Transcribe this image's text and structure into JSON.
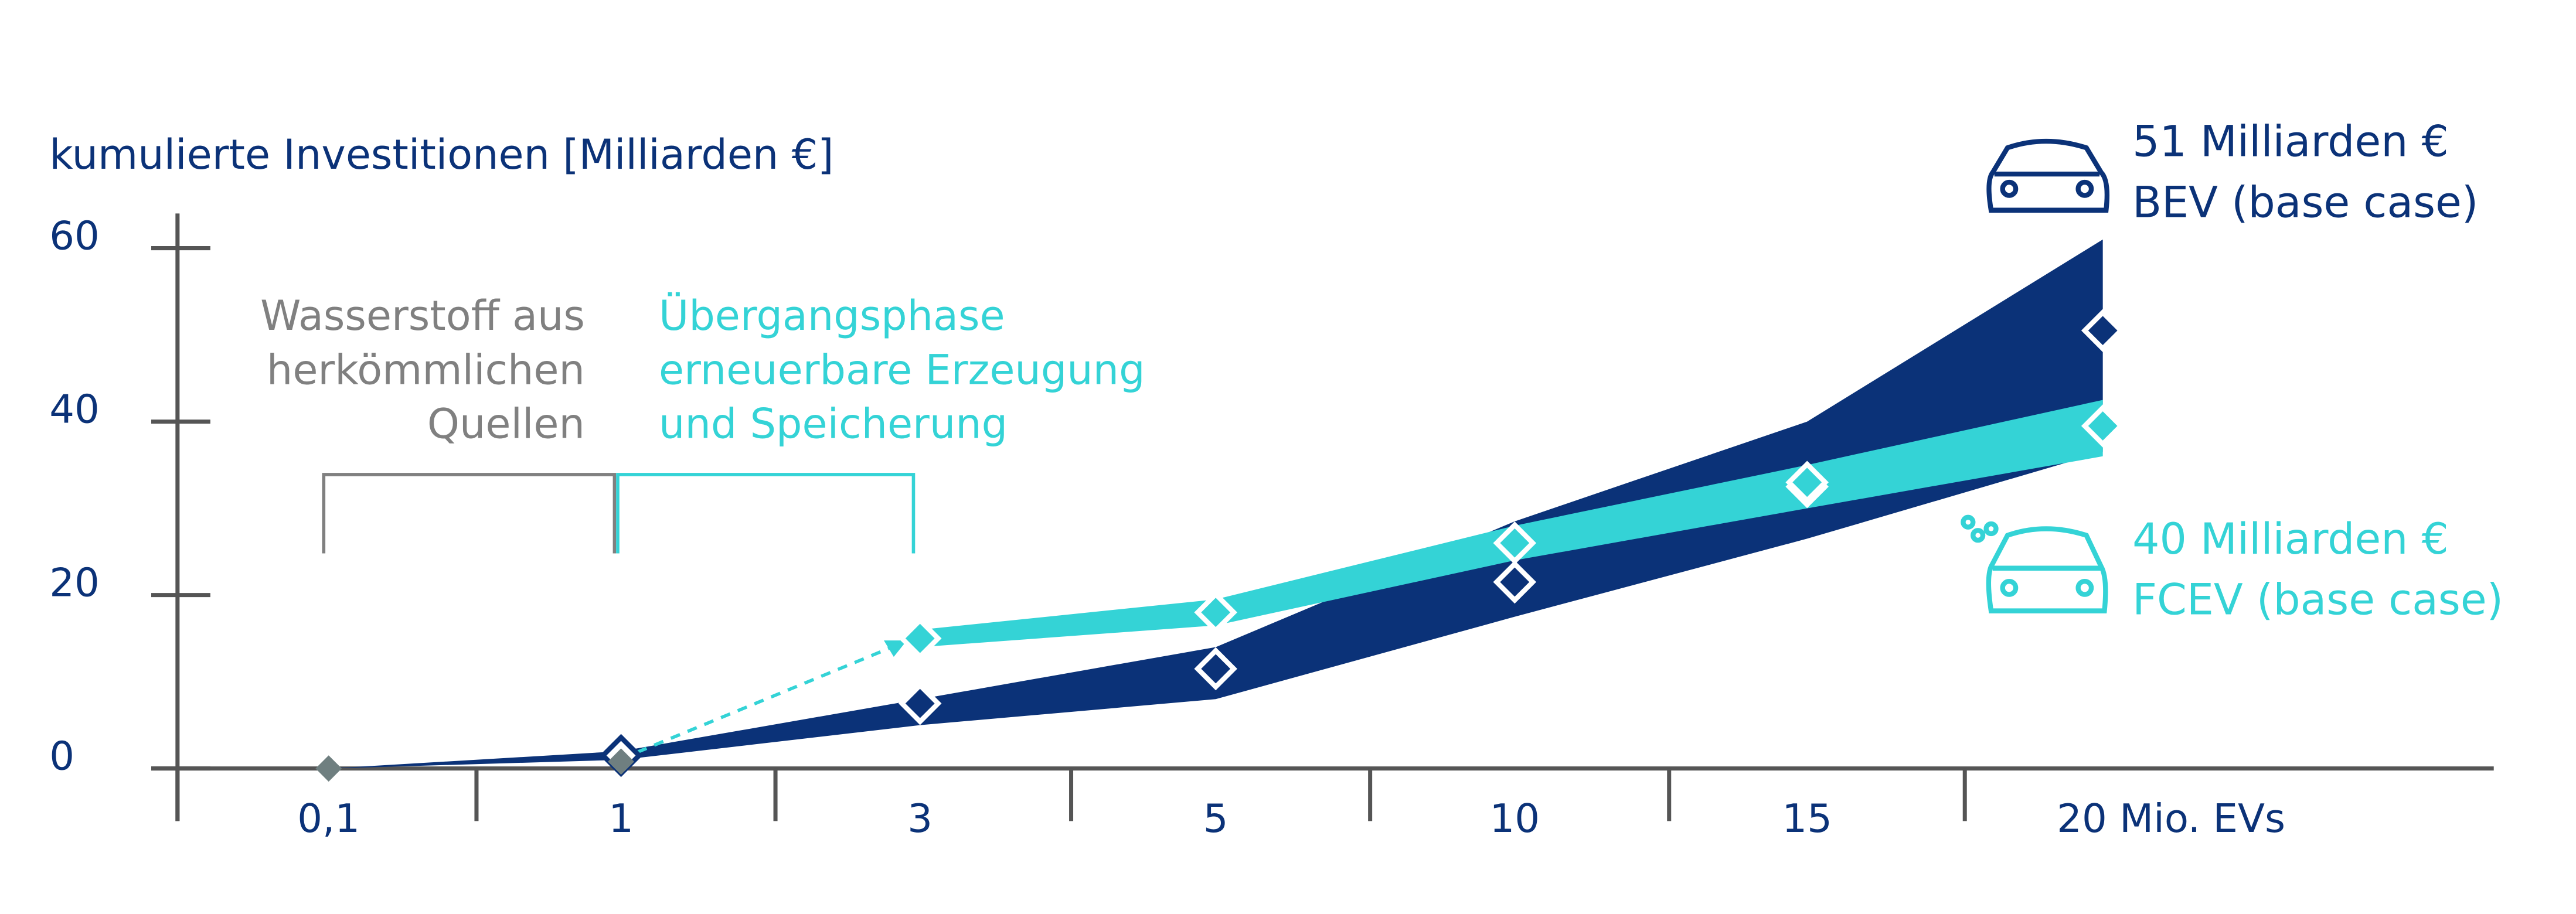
{
  "chart_data": {
    "type": "band-line",
    "y_title": "kumulierte Investitionen [Milliarden €]",
    "categories": [
      "0,1",
      "1",
      "3",
      "5",
      "10",
      "15",
      "20 Mio. EVs"
    ],
    "ylim": [
      0,
      64
    ],
    "yticks": [
      0,
      20,
      40,
      60
    ],
    "series": [
      {
        "name": "BEV (base case)",
        "annotation": "51 Milliarden €",
        "color": "#0b3278",
        "values": [
          null,
          1.5,
          7.5,
          11.5,
          21.5,
          32.5,
          50.5
        ],
        "low": [
          0,
          1,
          5,
          8,
          17.5,
          26.5,
          36.5
        ],
        "high": [
          0,
          2,
          8,
          14,
          28.5,
          40,
          61
        ]
      },
      {
        "name": "FCEV (base case)",
        "annotation": "40 Milliarden €",
        "color": "#34d3d6",
        "values": [
          null,
          null,
          15,
          18,
          26,
          33,
          39.5
        ],
        "low": [
          null,
          null,
          14,
          16.5,
          24,
          30,
          36
        ],
        "high": [
          null,
          null,
          16,
          19.5,
          28,
          35,
          42.5
        ]
      },
      {
        "color": "#6f7f80",
        "values": [
          0,
          0.8,
          null,
          null,
          null,
          null,
          null
        ]
      }
    ],
    "phases": [
      {
        "lines": [
          "Wasserstoff  aus",
          "herkömmlichen",
          "Quellen"
        ],
        "color": "#808080"
      },
      {
        "lines": [
          "Übergangsphase",
          "erneuerbare Erzeugung",
          "und Speicherung"
        ],
        "color": "#34d3d6"
      }
    ]
  }
}
